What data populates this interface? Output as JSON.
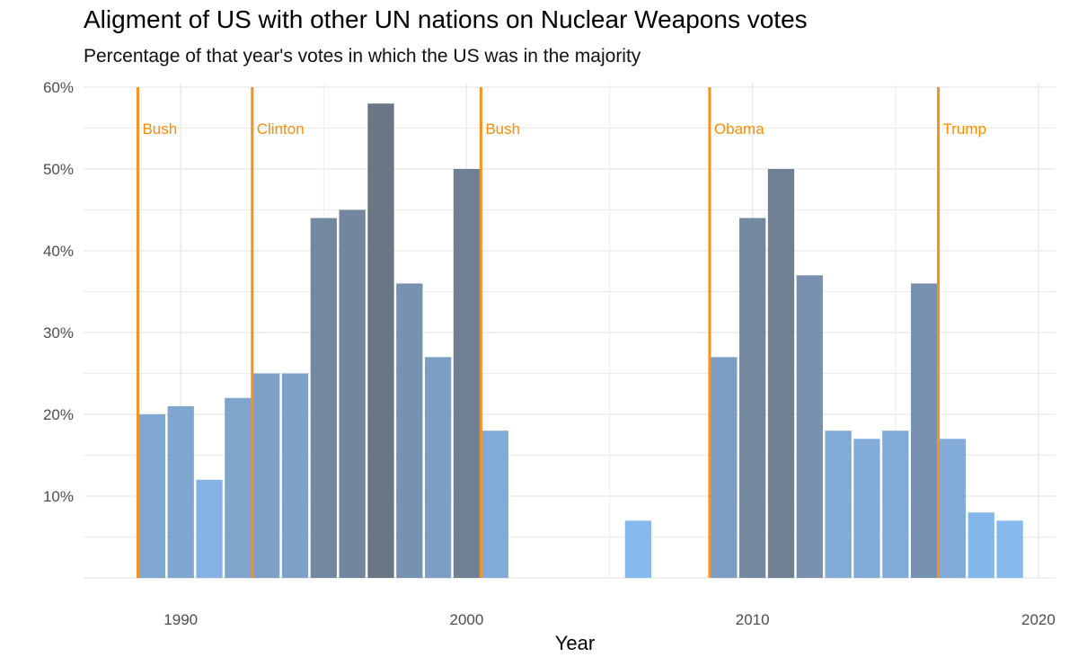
{
  "chart_data": {
    "type": "bar",
    "title": "Aligment of US with other UN nations on Nuclear Weapons votes",
    "subtitle": "Percentage of that year's votes in which the US was in the majority",
    "xlabel": "Year",
    "ylabel": "",
    "xlim": [
      1986.6,
      2020.6
    ],
    "ylim": [
      0,
      60
    ],
    "x_ticks": [
      1990,
      2000,
      2010,
      2020
    ],
    "y_ticks": [
      10,
      20,
      30,
      40,
      50,
      60
    ],
    "y_tick_labels": [
      "10%",
      "20%",
      "30%",
      "40%",
      "50%",
      "60%"
    ],
    "grid": true,
    "x": [
      1989,
      1990,
      1991,
      1992,
      1993,
      1994,
      1995,
      1996,
      1997,
      1998,
      1999,
      2000,
      2001,
      2006,
      2009,
      2010,
      2011,
      2012,
      2013,
      2014,
      2015,
      2016,
      2017,
      2018,
      2019
    ],
    "values": [
      20,
      21,
      12,
      22,
      25,
      25,
      44,
      45,
      58,
      36,
      27,
      50,
      18,
      7,
      27,
      44,
      50,
      37,
      18,
      17,
      18,
      36,
      17,
      8,
      7
    ],
    "color_scale": {
      "low": "#87b8ec",
      "high": "#6b7684"
    },
    "presidents": [
      {
        "name": "Bush",
        "start": 1988.5
      },
      {
        "name": "Clinton",
        "start": 1992.5
      },
      {
        "name": "Bush",
        "start": 2000.5
      },
      {
        "name": "Obama",
        "start": 2008.5
      },
      {
        "name": "Trump",
        "start": 2016.5
      }
    ],
    "president_line_color": "#f5921e"
  }
}
